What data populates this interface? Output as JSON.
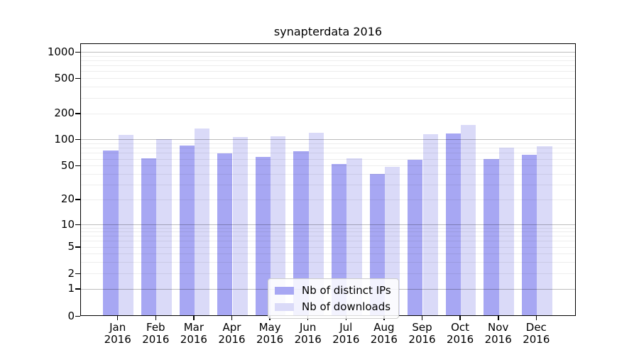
{
  "chart_data": {
    "type": "bar",
    "title": "synapterdata 2016",
    "x_categories": [
      "Jan",
      "Feb",
      "Mar",
      "Apr",
      "May",
      "Jun",
      "Jul",
      "Aug",
      "Sep",
      "Oct",
      "Nov",
      "Dec"
    ],
    "x_year_label": "2016",
    "series": [
      {
        "name": "Nb of distinct IPs",
        "color": "#a7a7f3",
        "values": [
          75,
          61,
          85,
          69,
          63,
          73,
          52,
          40,
          58,
          117,
          59,
          66
        ]
      },
      {
        "name": "Nb of downloads",
        "color": "#dadaf8",
        "values": [
          112,
          100,
          133,
          105,
          107,
          118,
          61,
          48,
          115,
          147,
          80,
          83
        ]
      }
    ],
    "y_axis": {
      "scale": "symlog",
      "tick_values": [
        0,
        1,
        2,
        5,
        10,
        20,
        50,
        100,
        200,
        500,
        1000
      ],
      "tick_labels": [
        "0",
        "1",
        "2",
        "5",
        "10",
        "20",
        "50",
        "100",
        "200",
        "500",
        "1000"
      ],
      "range": [
        0,
        1300
      ]
    },
    "grid": true,
    "legend_position": "lower-center"
  }
}
